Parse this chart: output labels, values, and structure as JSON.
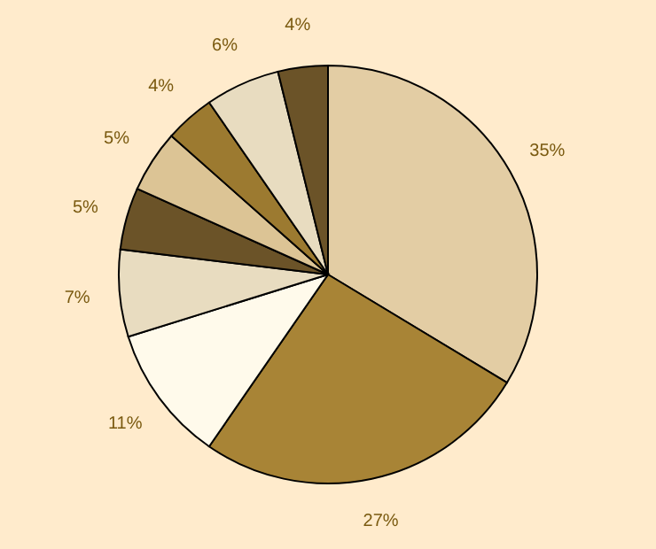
{
  "chart_data": {
    "type": "pie",
    "categories": [
      null,
      null,
      null,
      null,
      null,
      null,
      null,
      null,
      null
    ],
    "values": [
      35,
      27,
      11,
      7,
      5,
      5,
      4,
      6,
      4
    ],
    "value_labels": [
      "35%",
      "27%",
      "11%",
      "7%",
      "5%",
      "5%",
      "4%",
      "6%",
      "4%"
    ],
    "colors": [
      "#e3cda4",
      "#a88436",
      "#fffaeb",
      "#e8dcc0",
      "#6b5328",
      "#dcc495",
      "#9c7a30",
      "#e8dcc0",
      "#6b5328"
    ]
  }
}
